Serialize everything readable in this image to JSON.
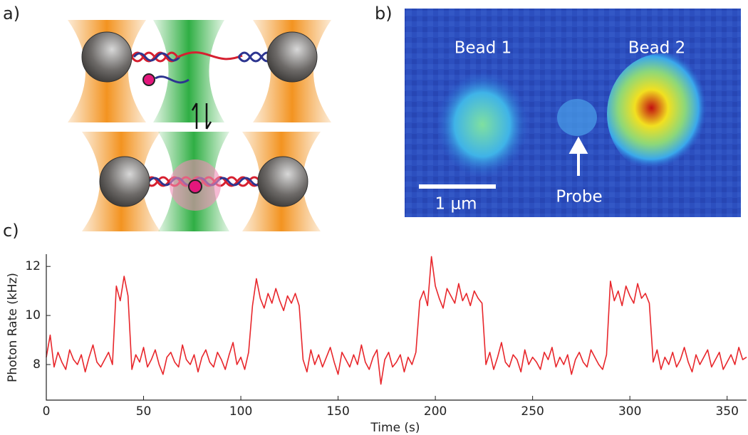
{
  "panels": {
    "a": "a)",
    "b": "b)",
    "c": "c)"
  },
  "image": {
    "labels": {
      "bead1": "Bead 1",
      "bead2": "Bead 2",
      "probe": "Probe",
      "scale": "1 μm"
    }
  },
  "chart_data": {
    "type": "line",
    "xlabel": "Time (s)",
    "ylabel": "Photon Rate (kHz)",
    "xlim": [
      0,
      360
    ],
    "ylim": [
      6.55,
      12.5
    ],
    "xticks": [
      0,
      50,
      100,
      150,
      200,
      250,
      300,
      350
    ],
    "yticks": [
      8,
      10,
      12
    ],
    "x": [
      0,
      2,
      4,
      6,
      8,
      10,
      12,
      14,
      16,
      18,
      20,
      22,
      24,
      26,
      28,
      30,
      32,
      34,
      36,
      38,
      40,
      42,
      44,
      46,
      48,
      50,
      52,
      54,
      56,
      58,
      60,
      62,
      64,
      66,
      68,
      70,
      72,
      74,
      76,
      78,
      80,
      82,
      84,
      86,
      88,
      90,
      92,
      94,
      96,
      98,
      100,
      102,
      104,
      106,
      108,
      110,
      112,
      114,
      116,
      118,
      120,
      122,
      124,
      126,
      128,
      130,
      132,
      134,
      136,
      138,
      140,
      142,
      144,
      146,
      148,
      150,
      152,
      154,
      156,
      158,
      160,
      162,
      164,
      166,
      168,
      170,
      172,
      174,
      176,
      178,
      180,
      182,
      184,
      186,
      188,
      190,
      192,
      194,
      196,
      198,
      200,
      202,
      204,
      206,
      208,
      210,
      212,
      214,
      216,
      218,
      220,
      222,
      224,
      226,
      228,
      230,
      232,
      234,
      236,
      238,
      240,
      242,
      244,
      246,
      248,
      250,
      252,
      254,
      256,
      258,
      260,
      262,
      264,
      266,
      268,
      270,
      272,
      274,
      276,
      278,
      280,
      282,
      284,
      286,
      288,
      290,
      292,
      294,
      296,
      298,
      300,
      302,
      304,
      306,
      308,
      310,
      312,
      314,
      316,
      318,
      320,
      322,
      324,
      326,
      328,
      330,
      332,
      334,
      336,
      338,
      340,
      342,
      344,
      346,
      348,
      350,
      352,
      354,
      356,
      358,
      360
    ],
    "series": [
      {
        "color": "#e8262b",
        "values": [
          8.3,
          9.2,
          7.9,
          8.5,
          8.1,
          7.8,
          8.6,
          8.2,
          8.0,
          8.4,
          7.7,
          8.3,
          8.8,
          8.1,
          7.9,
          8.2,
          8.5,
          8.0,
          11.2,
          10.6,
          11.6,
          10.8,
          7.8,
          8.4,
          8.1,
          8.7,
          7.9,
          8.2,
          8.6,
          8.0,
          7.6,
          8.3,
          8.5,
          8.1,
          7.9,
          8.8,
          8.2,
          8.0,
          8.4,
          7.7,
          8.3,
          8.6,
          8.1,
          7.9,
          8.5,
          8.2,
          7.8,
          8.4,
          8.9,
          8.0,
          8.3,
          7.8,
          8.5,
          10.4,
          11.5,
          10.7,
          10.3,
          10.9,
          10.5,
          11.1,
          10.6,
          10.2,
          10.8,
          10.5,
          10.9,
          10.4,
          8.2,
          7.7,
          8.6,
          8.0,
          8.4,
          7.9,
          8.3,
          8.7,
          8.1,
          7.6,
          8.5,
          8.2,
          7.9,
          8.4,
          8.0,
          8.8,
          8.1,
          7.8,
          8.3,
          8.6,
          7.2,
          8.2,
          8.5,
          7.9,
          8.1,
          8.4,
          7.7,
          8.3,
          8.0,
          8.5,
          10.6,
          11.0,
          10.4,
          12.4,
          11.2,
          10.7,
          10.3,
          11.1,
          10.8,
          10.5,
          11.3,
          10.6,
          10.9,
          10.4,
          11.0,
          10.7,
          10.5,
          8.0,
          8.5,
          7.8,
          8.3,
          8.9,
          8.1,
          7.9,
          8.4,
          8.2,
          7.7,
          8.6,
          8.0,
          8.3,
          8.1,
          7.8,
          8.5,
          8.2,
          8.7,
          7.9,
          8.3,
          8.0,
          8.4,
          7.6,
          8.2,
          8.5,
          8.1,
          7.9,
          8.6,
          8.3,
          8.0,
          7.8,
          8.4,
          11.4,
          10.6,
          11.0,
          10.4,
          11.2,
          10.8,
          10.5,
          11.3,
          10.7,
          10.9,
          10.5,
          8.1,
          8.6,
          7.8,
          8.3,
          8.0,
          8.5,
          7.9,
          8.2,
          8.7,
          8.1,
          7.7,
          8.4,
          8.0,
          8.3,
          8.6,
          7.9,
          8.2,
          8.5,
          7.8,
          8.1,
          8.4,
          8.0,
          8.7,
          8.2,
          8.3
        ]
      }
    ]
  }
}
